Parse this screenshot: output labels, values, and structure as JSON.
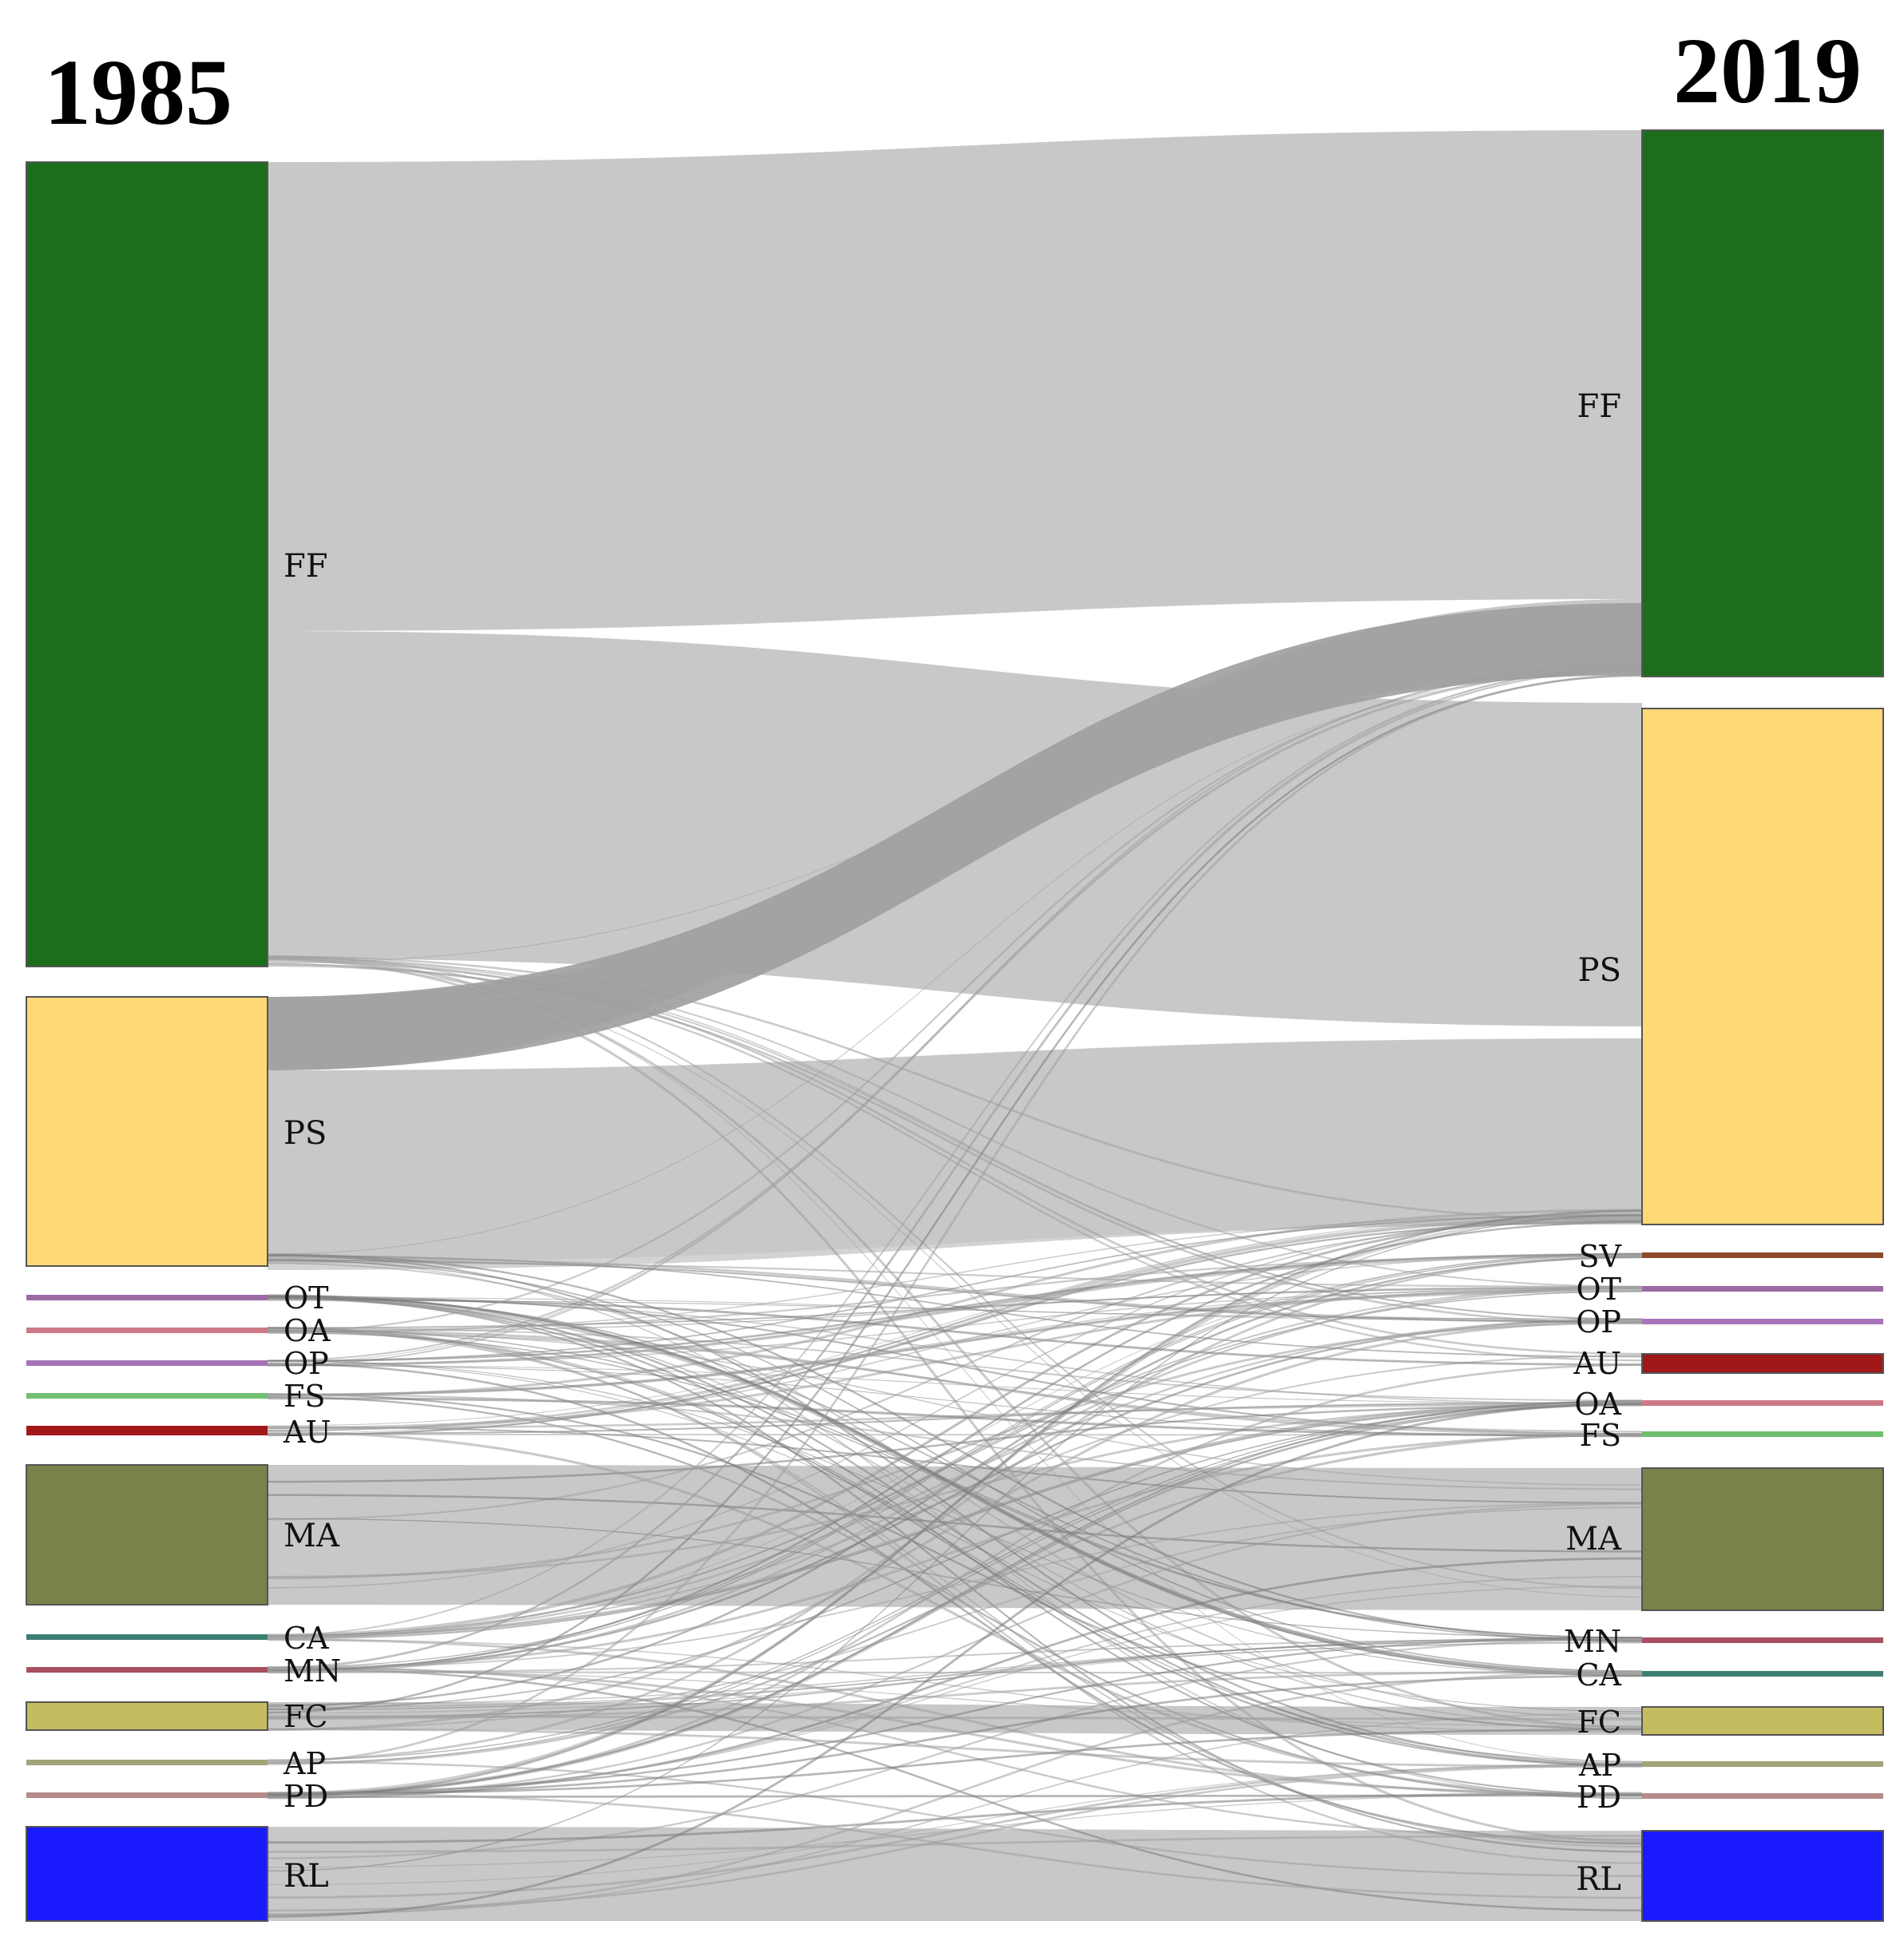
{
  "title_left": "1985",
  "title_right": "2019",
  "colors": {
    "FF": "#1c6e1c",
    "PS": "#ffd975",
    "OT": "#9b6ba6",
    "OA": "#cc7a86",
    "OP": "#a774b8",
    "FS": "#6fbf6f",
    "AU": "#a01818",
    "MA": "#77834a",
    "CA": "#3e7f73",
    "MN": "#a8505f",
    "FC": "#c4bd5f",
    "AP": "#a3a37a",
    "PD": "#b58a8a",
    "RL": "#1a1aff",
    "SV": "#8a4a2a",
    "link": "#c8c8c8",
    "link_dark": "#9e9e9e",
    "link_thin": "#7a7a7a"
  },
  "nodes_1985": [
    {
      "code": "FF",
      "label": "FF"
    },
    {
      "code": "PS",
      "label": "PS"
    },
    {
      "code": "OT",
      "label": "OT"
    },
    {
      "code": "OA",
      "label": "OA"
    },
    {
      "code": "OP",
      "label": "OP"
    },
    {
      "code": "FS",
      "label": "FS"
    },
    {
      "code": "AU",
      "label": "AU"
    },
    {
      "code": "MA",
      "label": "MA"
    },
    {
      "code": "CA",
      "label": "CA"
    },
    {
      "code": "MN",
      "label": "MN"
    },
    {
      "code": "FC",
      "label": "FC"
    },
    {
      "code": "AP",
      "label": "AP"
    },
    {
      "code": "PD",
      "label": "PD"
    },
    {
      "code": "RL",
      "label": "RL"
    }
  ],
  "nodes_2019": [
    {
      "code": "FF",
      "label": "FF"
    },
    {
      "code": "PS",
      "label": "PS"
    },
    {
      "code": "SV",
      "label": "SV"
    },
    {
      "code": "OT",
      "label": "OT"
    },
    {
      "code": "OP",
      "label": "OP"
    },
    {
      "code": "AU",
      "label": "AU"
    },
    {
      "code": "OA",
      "label": "OA"
    },
    {
      "code": "FS",
      "label": "FS"
    },
    {
      "code": "MA",
      "label": "MA"
    },
    {
      "code": "MN",
      "label": "MN"
    },
    {
      "code": "CA",
      "label": "CA"
    },
    {
      "code": "FC",
      "label": "FC"
    },
    {
      "code": "AP",
      "label": "AP"
    },
    {
      "code": "PD",
      "label": "PD"
    },
    {
      "code": "RL",
      "label": "RL"
    }
  ],
  "links": [
    {
      "from": "FF",
      "to": "FF",
      "kind": "main"
    },
    {
      "from": "FF",
      "to": "PS",
      "kind": "main"
    },
    {
      "from": "PS",
      "to": "FF",
      "kind": "dark"
    },
    {
      "from": "PS",
      "to": "PS",
      "kind": "main"
    },
    {
      "from": "MA",
      "to": "MA",
      "kind": "main"
    },
    {
      "from": "RL",
      "to": "RL",
      "kind": "main"
    },
    {
      "from": "FC",
      "to": "FC",
      "kind": "main"
    }
  ]
}
